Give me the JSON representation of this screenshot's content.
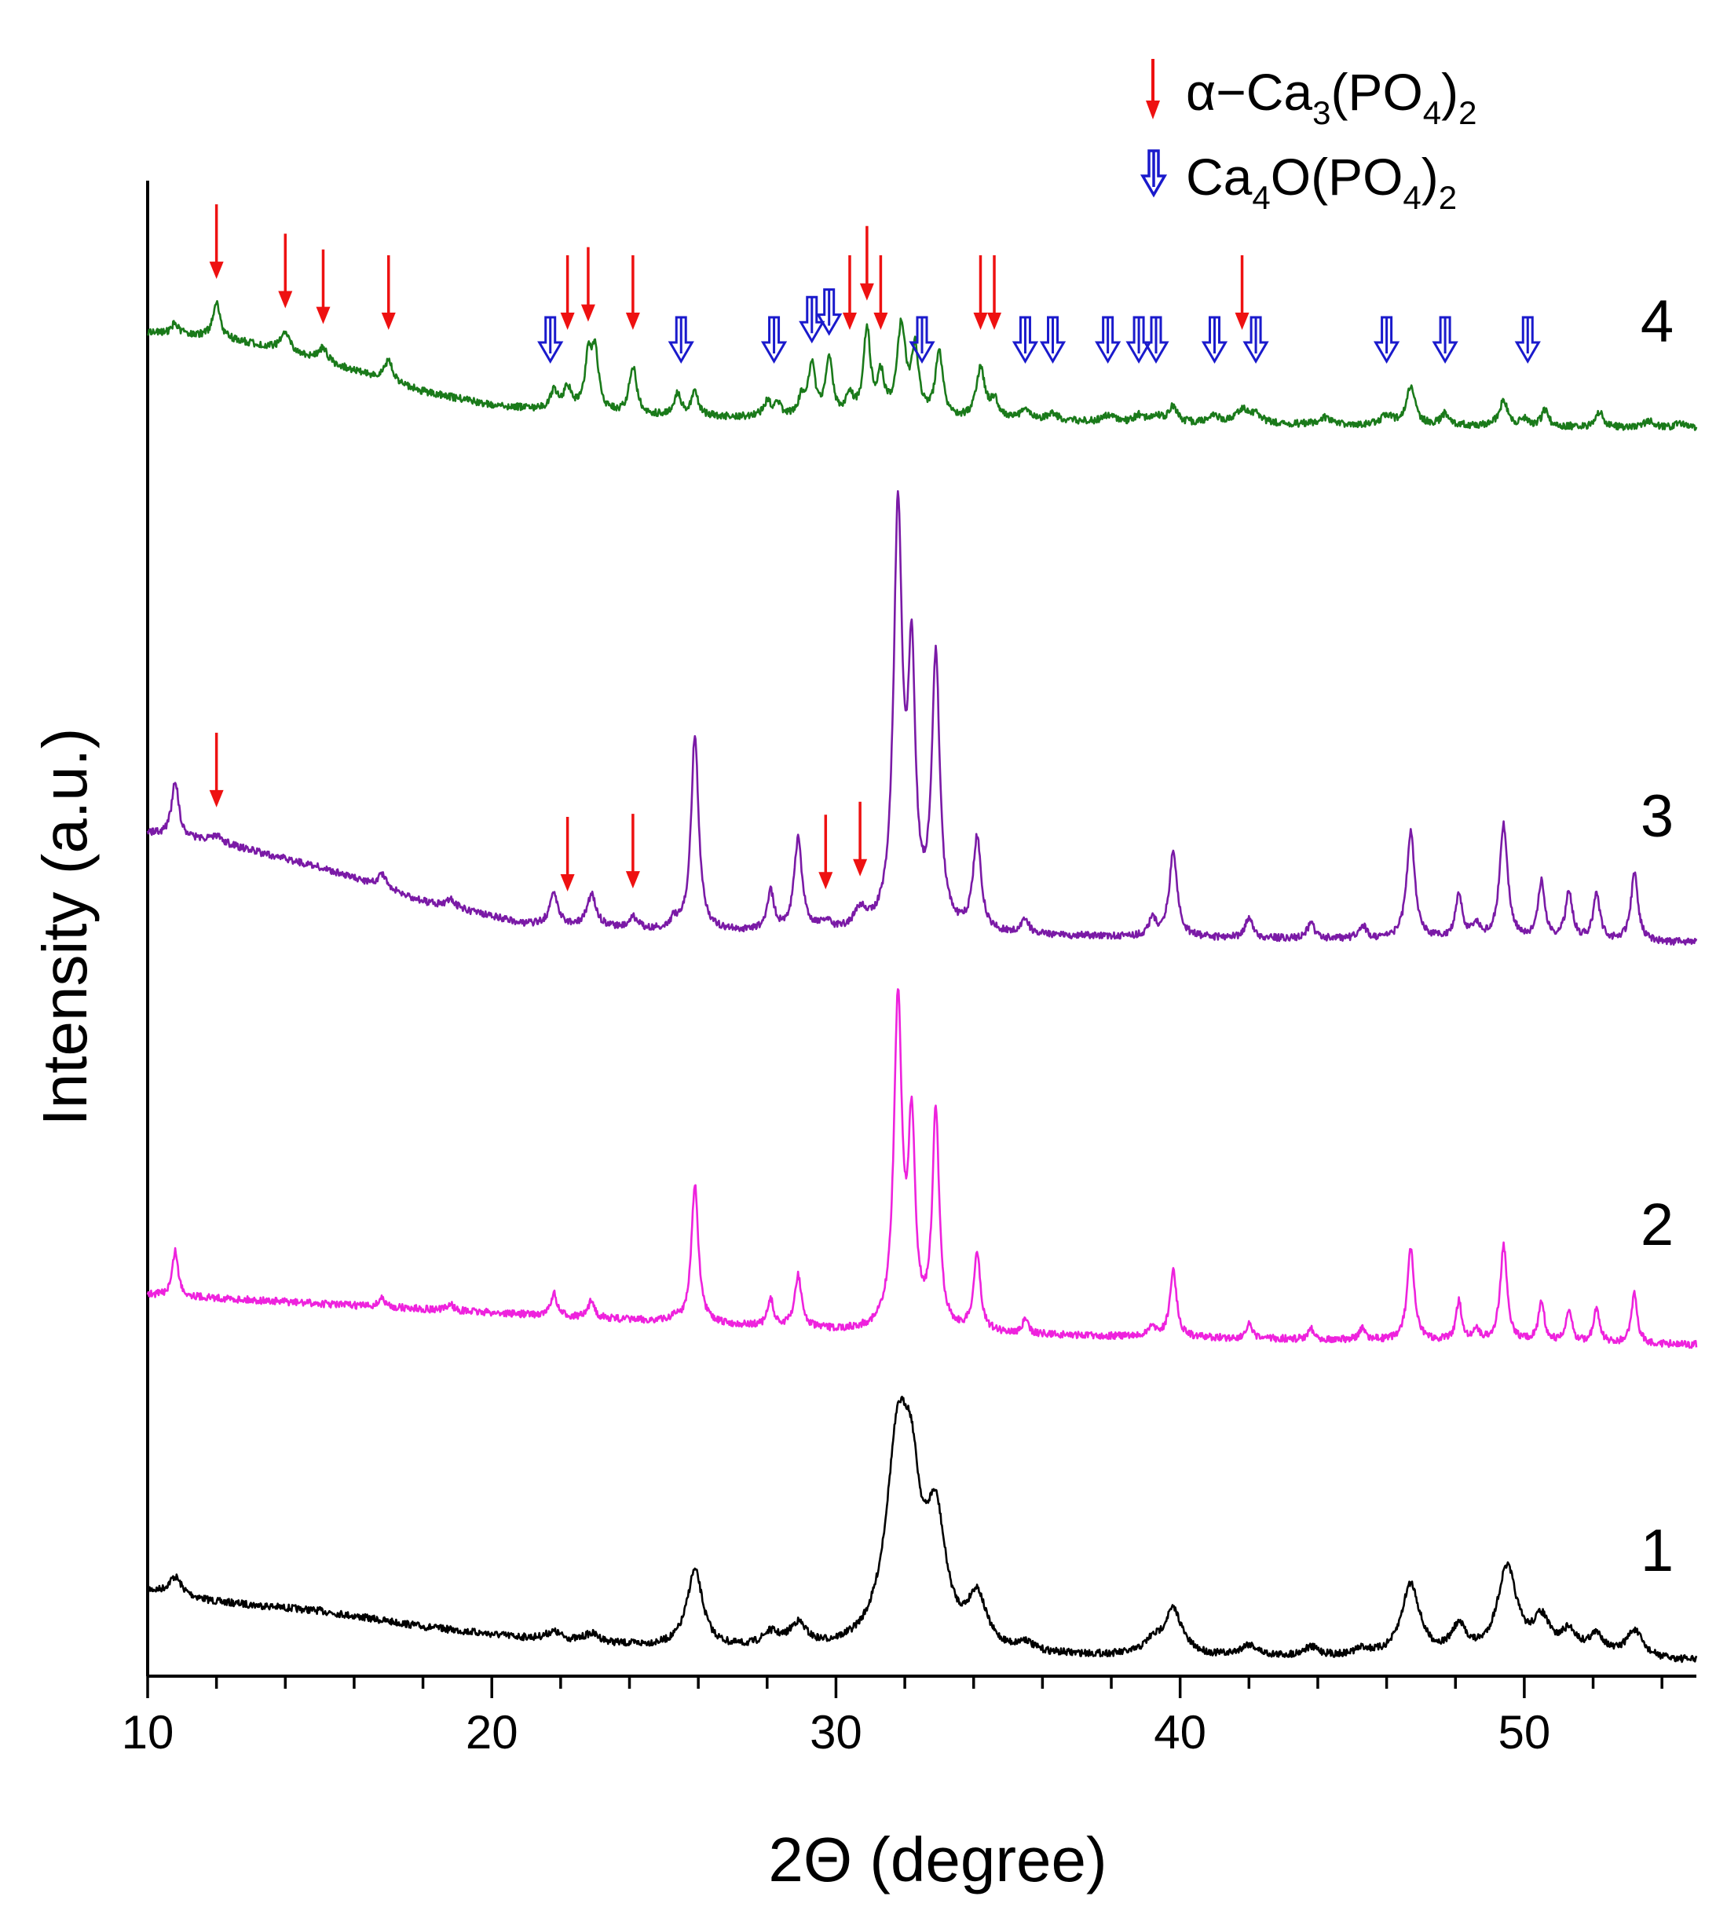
{
  "chart_data": {
    "type": "line",
    "xlabel": "2Θ (degree)",
    "ylabel": "Intensity (a.u.)",
    "xlim": [
      10,
      55
    ],
    "xticks": [
      10,
      20,
      30,
      40,
      50
    ],
    "yticks": [],
    "grid": false,
    "legend": {
      "placement": "top-right",
      "entries": [
        {
          "marker": "red-arrow",
          "label": "α−Ca3(PO4)2",
          "color": "#ee1111"
        },
        {
          "marker": "blue-hollow-double-arrow",
          "label": "Ca4O(PO4)2",
          "color": "#1a1acc"
        }
      ]
    },
    "series": [
      {
        "label": "1",
        "color": "#000000",
        "offset": 0,
        "background": [
          [
            10,
            0.33
          ],
          [
            12,
            0.28
          ],
          [
            15,
            0.24
          ],
          [
            18,
            0.17
          ],
          [
            22,
            0.1
          ],
          [
            26,
            0.07
          ],
          [
            35,
            0.04
          ],
          [
            45,
            0.03
          ],
          [
            55,
            0.02
          ]
        ],
        "peaks": [
          [
            10.8,
            0.08,
            0.22
          ],
          [
            21.8,
            0.04,
            0.3
          ],
          [
            22.9,
            0.04,
            0.3
          ],
          [
            25.9,
            0.34,
            0.28
          ],
          [
            28.1,
            0.06,
            0.3
          ],
          [
            28.9,
            0.1,
            0.3
          ],
          [
            31.8,
            0.87,
            0.42
          ],
          [
            32.2,
            0.46,
            0.3
          ],
          [
            32.9,
            0.52,
            0.35
          ],
          [
            34.1,
            0.22,
            0.32
          ],
          [
            35.5,
            0.04,
            0.25
          ],
          [
            39.2,
            0.05,
            0.3
          ],
          [
            39.8,
            0.2,
            0.32
          ],
          [
            42.0,
            0.05,
            0.3
          ],
          [
            43.8,
            0.04,
            0.3
          ],
          [
            45.3,
            0.03,
            0.3
          ],
          [
            46.7,
            0.32,
            0.32
          ],
          [
            48.1,
            0.12,
            0.28
          ],
          [
            49.5,
            0.39,
            0.35
          ],
          [
            50.5,
            0.15,
            0.3
          ],
          [
            51.3,
            0.1,
            0.3
          ],
          [
            52.1,
            0.09,
            0.3
          ],
          [
            53.2,
            0.12,
            0.3
          ]
        ]
      },
      {
        "label": "2",
        "color": "#ee22dd",
        "offset": 1.0,
        "background": [
          [
            10,
            0.22
          ],
          [
            20,
            0.14
          ],
          [
            30,
            0.06
          ],
          [
            40,
            0.03
          ],
          [
            55,
            0.0
          ]
        ],
        "peaks": [
          [
            10.8,
            0.2,
            0.1
          ],
          [
            16.8,
            0.04,
            0.1
          ],
          [
            18.8,
            0.03,
            0.1
          ],
          [
            21.8,
            0.1,
            0.1
          ],
          [
            22.9,
            0.08,
            0.1
          ],
          [
            25.3,
            0.02,
            0.1
          ],
          [
            25.9,
            0.61,
            0.12
          ],
          [
            28.1,
            0.12,
            0.1
          ],
          [
            28.9,
            0.23,
            0.12
          ],
          [
            31.8,
            1.43,
            0.14
          ],
          [
            32.2,
            0.85,
            0.12
          ],
          [
            32.9,
            0.95,
            0.12
          ],
          [
            34.1,
            0.34,
            0.12
          ],
          [
            35.5,
            0.06,
            0.1
          ],
          [
            39.2,
            0.05,
            0.1
          ],
          [
            39.8,
            0.29,
            0.12
          ],
          [
            42.0,
            0.06,
            0.1
          ],
          [
            43.8,
            0.05,
            0.1
          ],
          [
            45.3,
            0.05,
            0.1
          ],
          [
            46.7,
            0.4,
            0.12
          ],
          [
            48.1,
            0.17,
            0.1
          ],
          [
            48.6,
            0.05,
            0.1
          ],
          [
            49.4,
            0.42,
            0.12
          ],
          [
            50.5,
            0.18,
            0.1
          ],
          [
            51.3,
            0.14,
            0.1
          ],
          [
            52.1,
            0.15,
            0.1
          ],
          [
            53.2,
            0.22,
            0.1
          ]
        ]
      },
      {
        "label": "3",
        "color": "#7a1aa6",
        "offset": 2.0,
        "background": [
          [
            10,
            0.48
          ],
          [
            12,
            0.44
          ],
          [
            15,
            0.33
          ],
          [
            18,
            0.18
          ],
          [
            21,
            0.08
          ],
          [
            25,
            0.05
          ],
          [
            30,
            0.04
          ],
          [
            40,
            0.02
          ],
          [
            55,
            0.0
          ]
        ],
        "peaks": [
          [
            10.8,
            0.25,
            0.12
          ],
          [
            12.0,
            0.03,
            0.2
          ],
          [
            16.8,
            0.06,
            0.15
          ],
          [
            18.8,
            0.04,
            0.15
          ],
          [
            21.8,
            0.14,
            0.14
          ],
          [
            22.9,
            0.14,
            0.16
          ],
          [
            24.1,
            0.05,
            0.15
          ],
          [
            25.3,
            0.04,
            0.12
          ],
          [
            25.9,
            0.86,
            0.13
          ],
          [
            28.1,
            0.17,
            0.12
          ],
          [
            28.9,
            0.4,
            0.14
          ],
          [
            29.7,
            0.04,
            0.15
          ],
          [
            30.7,
            0.08,
            0.2
          ],
          [
            31.8,
            1.8,
            0.15
          ],
          [
            32.2,
            1.1,
            0.13
          ],
          [
            32.9,
            1.18,
            0.14
          ],
          [
            34.1,
            0.41,
            0.14
          ],
          [
            35.5,
            0.07,
            0.12
          ],
          [
            39.2,
            0.08,
            0.12
          ],
          [
            39.8,
            0.37,
            0.14
          ],
          [
            42.0,
            0.09,
            0.12
          ],
          [
            43.8,
            0.07,
            0.12
          ],
          [
            45.3,
            0.06,
            0.12
          ],
          [
            46.7,
            0.47,
            0.14
          ],
          [
            48.1,
            0.2,
            0.12
          ],
          [
            48.6,
            0.06,
            0.12
          ],
          [
            49.4,
            0.5,
            0.14
          ],
          [
            50.5,
            0.25,
            0.12
          ],
          [
            51.3,
            0.21,
            0.12
          ],
          [
            52.1,
            0.2,
            0.12
          ],
          [
            53.2,
            0.3,
            0.12
          ]
        ]
      },
      {
        "label": "4",
        "color": "#1a7a1a",
        "offset": 3.2,
        "background": [
          [
            10,
            0.44
          ],
          [
            12,
            0.42
          ],
          [
            14,
            0.36
          ],
          [
            16,
            0.27
          ],
          [
            18,
            0.18
          ],
          [
            20,
            0.12
          ],
          [
            22,
            0.09
          ],
          [
            25,
            0.07
          ],
          [
            30,
            0.06
          ],
          [
            35,
            0.05
          ],
          [
            40,
            0.04
          ],
          [
            55,
            0.02
          ]
        ],
        "peaks": [
          [
            10.8,
            0.05,
            0.12
          ],
          [
            12.0,
            0.15,
            0.12
          ],
          [
            14.0,
            0.08,
            0.15
          ],
          [
            15.1,
            0.06,
            0.15
          ],
          [
            17.0,
            0.09,
            0.14
          ],
          [
            21.8,
            0.08,
            0.14
          ],
          [
            22.2,
            0.1,
            0.14
          ],
          [
            22.8,
            0.22,
            0.12
          ],
          [
            23.0,
            0.26,
            0.12
          ],
          [
            24.1,
            0.21,
            0.13
          ],
          [
            25.4,
            0.1,
            0.12
          ],
          [
            25.9,
            0.1,
            0.13
          ],
          [
            28.0,
            0.06,
            0.14
          ],
          [
            28.3,
            0.05,
            0.14
          ],
          [
            29.0,
            0.08,
            0.12
          ],
          [
            29.3,
            0.22,
            0.12
          ],
          [
            29.8,
            0.26,
            0.12
          ],
          [
            30.4,
            0.08,
            0.14
          ],
          [
            30.9,
            0.38,
            0.12
          ],
          [
            31.3,
            0.17,
            0.12
          ],
          [
            31.9,
            0.4,
            0.15
          ],
          [
            32.3,
            0.29,
            0.12
          ],
          [
            33.0,
            0.29,
            0.13
          ],
          [
            34.2,
            0.22,
            0.15
          ],
          [
            34.6,
            0.08,
            0.14
          ],
          [
            35.5,
            0.04,
            0.2
          ],
          [
            36.3,
            0.03,
            0.2
          ],
          [
            37.9,
            0.03,
            0.2
          ],
          [
            38.8,
            0.03,
            0.15
          ],
          [
            39.3,
            0.03,
            0.2
          ],
          [
            39.8,
            0.07,
            0.14
          ],
          [
            41.0,
            0.03,
            0.2
          ],
          [
            41.8,
            0.06,
            0.2
          ],
          [
            42.2,
            0.04,
            0.2
          ],
          [
            44.2,
            0.03,
            0.2
          ],
          [
            46.0,
            0.04,
            0.2
          ],
          [
            46.7,
            0.17,
            0.15
          ],
          [
            47.7,
            0.05,
            0.14
          ],
          [
            49.4,
            0.11,
            0.15
          ],
          [
            50.0,
            0.03,
            0.12
          ],
          [
            50.6,
            0.07,
            0.12
          ],
          [
            52.2,
            0.07,
            0.12
          ],
          [
            53.6,
            0.03,
            0.15
          ],
          [
            54.5,
            0.02,
            0.15
          ]
        ]
      }
    ],
    "annotations": {
      "alpha_TCP_arrows": [
        12.0,
        14.0,
        15.1,
        17.0,
        22.2,
        22.8,
        24.1,
        30.4,
        30.9,
        31.3,
        34.2,
        34.6,
        41.8,
        12.0,
        22.2,
        24.1,
        29.7,
        30.7
      ],
      "TTCP_arrows": [
        21.7,
        25.5,
        28.2,
        29.3,
        29.8,
        32.5,
        35.5,
        36.3,
        37.9,
        38.8,
        39.3,
        41.0,
        42.2,
        46.0,
        47.7,
        50.1
      ]
    }
  }
}
